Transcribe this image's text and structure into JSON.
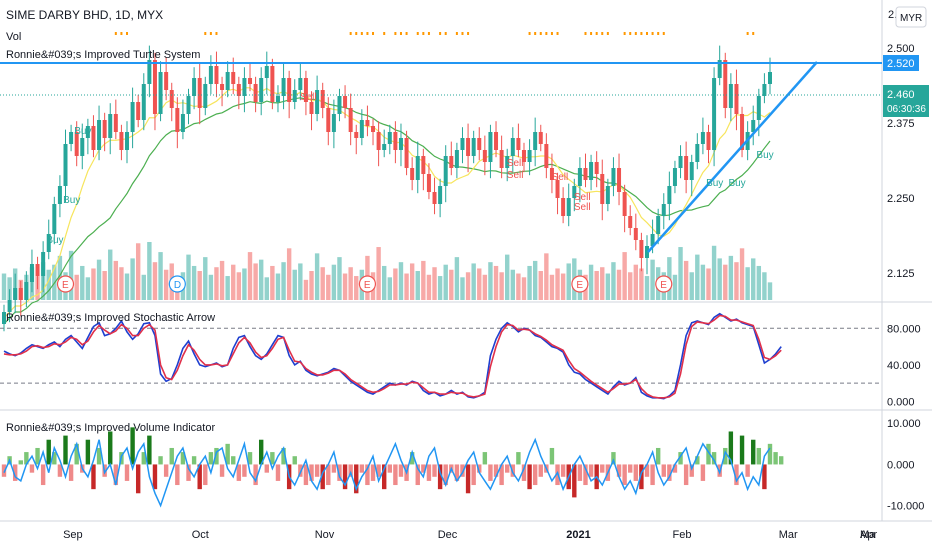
{
  "chart": {
    "title": "SIME DARBY BHD, 1D, MYX",
    "currency": "MYR",
    "vol_label": "Vol",
    "turtle_label": "Ronnie&#039;s Improved Turtle System",
    "stoch_label": "Ronnie&#039;s Improved Stochastic Arrow",
    "volume_label": "Ronnie&#039;s Improved Volume Indicator",
    "price_tag_resistance": "2.520",
    "price_tag_last": "2.460",
    "price_tag_countdown": "06:30:36",
    "top_cut_tick": "2.",
    "colors": {
      "up": "#26a69a",
      "down": "#ef5350",
      "blue": "#2196f3",
      "green_ma": "#4caf50",
      "yellow_ma": "#f7e55d",
      "orange_dots": "#ff9800"
    }
  },
  "signals": {
    "buy": [
      "Buy",
      "Buy",
      "Buy",
      "Buy",
      "Buy",
      "Buy"
    ],
    "sell": [
      "Sell",
      "Sell",
      "Sell",
      "Sell",
      "Sell",
      "Sell"
    ],
    "events": [
      "E",
      "D",
      "E",
      "E",
      "E"
    ]
  },
  "chart_data": [
    {
      "type": "candlestick",
      "title": "SIME DARBY BHD, 1D, MYX",
      "y_ticks": [
        "2.500",
        "2.375",
        "2.250",
        "2.125"
      ],
      "ylim": [
        2.08,
        2.58
      ],
      "x_ticks": [
        "Sep",
        "Oct",
        "Nov",
        "Dec",
        "2021",
        "Feb",
        "Mar",
        "Apr",
        "Ma"
      ],
      "close": [
        2.06,
        2.08,
        2.1,
        2.08,
        2.11,
        2.14,
        2.12,
        2.16,
        2.19,
        2.24,
        2.27,
        2.34,
        2.36,
        2.32,
        2.35,
        2.37,
        2.33,
        2.38,
        2.35,
        2.39,
        2.36,
        2.33,
        2.36,
        2.41,
        2.38,
        2.44,
        2.48,
        2.39,
        2.46,
        2.43,
        2.4,
        2.36,
        2.39,
        2.42,
        2.45,
        2.4,
        2.44,
        2.47,
        2.44,
        2.43,
        2.46,
        2.44,
        2.42,
        2.45,
        2.44,
        2.41,
        2.45,
        2.47,
        2.41,
        2.42,
        2.45,
        2.41,
        2.43,
        2.45,
        2.41,
        2.39,
        2.43,
        2.4,
        2.36,
        2.39,
        2.42,
        2.4,
        2.36,
        2.35,
        2.38,
        2.37,
        2.36,
        2.33,
        2.34,
        2.36,
        2.33,
        2.35,
        2.3,
        2.28,
        2.32,
        2.29,
        2.26,
        2.24,
        2.27,
        2.32,
        2.3,
        2.33,
        2.35,
        2.32,
        2.35,
        2.33,
        2.31,
        2.36,
        2.33,
        2.3,
        2.32,
        2.35,
        2.33,
        2.31,
        2.33,
        2.36,
        2.34,
        2.3,
        2.28,
        2.25,
        2.22,
        2.25,
        2.27,
        2.3,
        2.28,
        2.31,
        2.29,
        2.24,
        2.27,
        2.3,
        2.26,
        2.22,
        2.2,
        2.18,
        2.15,
        2.17,
        2.19,
        2.22,
        2.24,
        2.27,
        2.3,
        2.32,
        2.28,
        2.31,
        2.34,
        2.36,
        2.33,
        2.45,
        2.48,
        2.4,
        2.44,
        2.39,
        2.33,
        2.36,
        2.38,
        2.42,
        2.44,
        2.46
      ],
      "volume": [
        2.1,
        1.8,
        2.5,
        1.6,
        2.0,
        2.6,
        1.9,
        3.0,
        2.4,
        2.8,
        3.5,
        2.2,
        3.9,
        2.0,
        2.7,
        1.8,
        2.5,
        3.2,
        2.3,
        4.0,
        3.1,
        2.6,
        2.1,
        3.3,
        4.5,
        2.0,
        4.6,
        3.0,
        3.8,
        2.4,
        2.9,
        1.7,
        2.2,
        3.6,
        2.7,
        2.3,
        3.4,
        2.0,
        2.6,
        3.1,
        1.9,
        2.8,
        2.2,
        2.5,
        3.8,
        2.9,
        3.2,
        1.8,
        2.7,
        2.1,
        3.0,
        4.1,
        2.4,
        2.9,
        1.6,
        2.3,
        3.7,
        2.6,
        2.0,
        2.8,
        3.4,
        2.1,
        2.6,
        1.9,
        2.4,
        3.5,
        2.2,
        4.2,
        2.7,
        1.8,
        2.5,
        3.0,
        2.1,
        2.9,
        2.3,
        3.1,
        2.0,
        2.6,
        1.9,
        2.8,
        2.4,
        3.4,
        1.8,
        2.2,
        2.9,
        2.5,
        2.0,
        3.0,
        2.7,
        2.2,
        3.6,
        2.4,
        2.1,
        1.8,
        2.7,
        3.1,
        2.3,
        3.7,
        2.0,
        2.5,
        2.1,
        2.9,
        3.3,
        2.4,
        2.0,
        2.8,
        2.3,
        2.6,
        2.1,
        3.0,
        2.4,
        3.8,
        2.2,
        2.8,
        2.5,
        1.9,
        3.2,
        2.6,
        2.2,
        3.4,
        2.0,
        4.2,
        3.1,
        2.2,
        3.6,
        2.8,
        2.5,
        4.3,
        3.3,
        2.8,
        3.5,
        3.0,
        4.1,
        2.6,
        3.3,
        2.7,
        2.2,
        1.4
      ]
    },
    {
      "type": "line",
      "title": "Ronnie&#039;s Improved Stochastic Arrow",
      "y_ticks": [
        "80.000",
        "40.000",
        "0.000"
      ],
      "ylim": [
        -5,
        100
      ],
      "series": [
        {
          "values": [
            55,
            52,
            50,
            53,
            58,
            62,
            60,
            58,
            62,
            65,
            60,
            68,
            72,
            65,
            58,
            70,
            82,
            86,
            72,
            74,
            80,
            88,
            76,
            68,
            74,
            85,
            86,
            72,
            30,
            22,
            25,
            40,
            58,
            66,
            52,
            40,
            38,
            40,
            42,
            38,
            40,
            58,
            70,
            72,
            60,
            50,
            46,
            52,
            62,
            72,
            70,
            50,
            40,
            44,
            34,
            30,
            28,
            30,
            32,
            36,
            34,
            28,
            22,
            18,
            14,
            10,
            8,
            12,
            16,
            20,
            18,
            20,
            18,
            22,
            20,
            12,
            8,
            10,
            6,
            8,
            12,
            8,
            10,
            5,
            4,
            6,
            10,
            50,
            68,
            80,
            86,
            82,
            76,
            80,
            78,
            72,
            70,
            65,
            60,
            58,
            54,
            40,
            32,
            30,
            24,
            20,
            16,
            12,
            8,
            16,
            22,
            18,
            20,
            26,
            10,
            6,
            4,
            4,
            3,
            6,
            12,
            40,
            72,
            86,
            88,
            86,
            84,
            92,
            96,
            92,
            88,
            90,
            86,
            84,
            82,
            62,
            42,
            46,
            52,
            60
          ]
        },
        {
          "values": [
            52,
            51,
            51,
            52,
            55,
            60,
            61,
            59,
            60,
            63,
            62,
            65,
            70,
            68,
            62,
            66,
            76,
            83,
            78,
            74,
            77,
            84,
            80,
            72,
            72,
            80,
            84,
            78,
            40,
            26,
            24,
            34,
            50,
            62,
            56,
            46,
            40,
            40,
            41,
            39,
            40,
            52,
            64,
            70,
            64,
            54,
            48,
            50,
            58,
            68,
            70,
            56,
            44,
            43,
            36,
            32,
            29,
            29,
            31,
            34,
            34,
            30,
            24,
            20,
            16,
            12,
            10,
            11,
            14,
            18,
            18,
            19,
            19,
            21,
            20,
            15,
            10,
            10,
            8,
            8,
            10,
            9,
            9,
            6,
            5,
            6,
            8,
            38,
            60,
            76,
            84,
            83,
            78,
            79,
            78,
            74,
            71,
            67,
            62,
            59,
            56,
            45,
            36,
            32,
            27,
            22,
            18,
            14,
            10,
            14,
            19,
            19,
            20,
            24,
            14,
            8,
            5,
            4,
            4,
            5,
            9,
            30,
            62,
            82,
            87,
            86,
            85,
            89,
            94,
            93,
            89,
            89,
            87,
            85,
            83,
            68,
            48,
            46,
            50,
            56
          ]
        }
      ]
    },
    {
      "type": "bar",
      "title": "Ronnie&#039;s Improved Volume Indicator",
      "y_ticks": [
        "10.000",
        "0.000",
        "-10.000"
      ],
      "ylim": [
        -13,
        12
      ],
      "values": [
        -3,
        2,
        -4,
        1,
        3,
        -2,
        4,
        -5,
        6,
        3,
        -3,
        7,
        -4,
        5,
        -2,
        6,
        -6,
        4,
        -3,
        8,
        -5,
        3,
        -4,
        9,
        -7,
        3,
        7,
        -6,
        2,
        -3,
        4,
        -5,
        3,
        -4,
        2,
        -6,
        -5,
        3,
        4,
        -3,
        5,
        2,
        -4,
        -3,
        3,
        -5,
        6,
        -2,
        3,
        -4,
        4,
        -6,
        2,
        -3,
        -5,
        -4,
        -3,
        -6,
        -5,
        -2,
        -4,
        -6,
        -3,
        -7,
        -2,
        -5,
        -4,
        -3,
        -6,
        -2,
        -5,
        -3,
        -4,
        3,
        -5,
        -2,
        -4,
        -3,
        -6,
        -5,
        -2,
        -4,
        -3,
        -7,
        -5,
        -2,
        3,
        -4,
        -3,
        -5,
        -2,
        -3,
        3,
        -4,
        -6,
        -5,
        -3,
        -2,
        4,
        -5,
        -3,
        -6,
        -8,
        -4,
        -5,
        -3,
        -6,
        -2,
        -4,
        3,
        -3,
        -5,
        -2,
        -4,
        -6,
        -3,
        -5,
        4,
        -3,
        -4,
        -2,
        3,
        -5,
        -3,
        2,
        -4,
        5,
        3,
        -3,
        4,
        8,
        -5,
        7,
        -3,
        6,
        4,
        -6,
        5,
        3,
        2
      ],
      "line": [
        -2,
        1,
        -3,
        -4,
        0,
        2,
        -1,
        3,
        -2,
        4,
        1,
        -3,
        2,
        5,
        -1,
        -3,
        1,
        6,
        -2,
        0,
        -5,
        2,
        4,
        -1,
        3,
        5,
        -3,
        -7,
        -10,
        -6,
        -2,
        2,
        4,
        -1,
        -3,
        0,
        2,
        -2,
        3,
        4,
        -1,
        -3,
        1,
        5,
        -2,
        -4,
        0,
        3,
        -1,
        2,
        4,
        -3,
        -5,
        -2,
        1,
        -4,
        -6,
        -2,
        0,
        3,
        -3,
        -5,
        -2,
        -6,
        -3,
        -1,
        2,
        -4,
        -1,
        2,
        5,
        1,
        -2,
        3,
        -1,
        -3,
        2,
        4,
        -2,
        -5,
        -1,
        -4,
        -2,
        1,
        3,
        -2,
        -4,
        -6,
        -3,
        0,
        2,
        -2,
        -4,
        -1,
        3,
        6,
        2,
        -1,
        -4,
        -2,
        -6,
        -3,
        0,
        2,
        -1,
        -4,
        -3,
        -5,
        -2,
        1,
        -3,
        -6,
        -4,
        -7,
        -2,
        0,
        3,
        -2,
        -5,
        -3,
        0,
        2,
        4,
        -1,
        2,
        5,
        3,
        1,
        -2,
        3,
        1,
        -4,
        -2,
        -6,
        -3,
        -5,
        2,
        4
      ]
    }
  ]
}
